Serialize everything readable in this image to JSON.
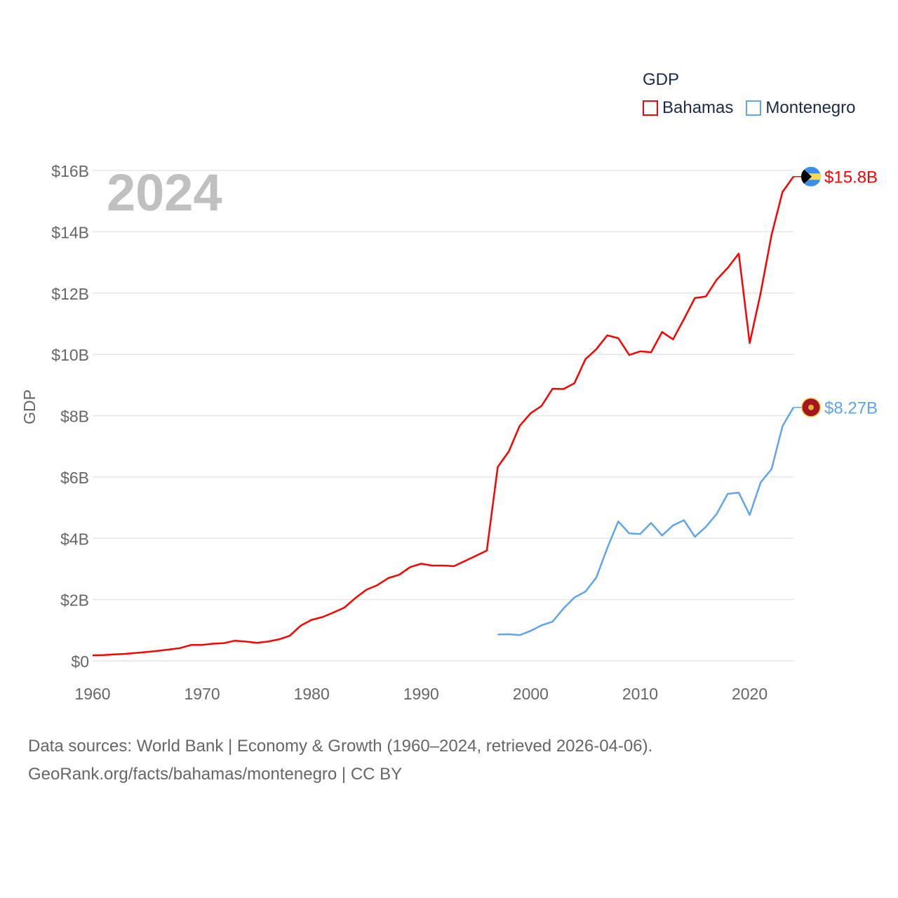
{
  "legend": {
    "title": "GDP",
    "items": [
      {
        "label": "Bahamas",
        "color": "#ff0000"
      },
      {
        "label": "Montenegro",
        "color": "#5ea5ee"
      }
    ]
  },
  "footer": {
    "line1": "Data sources: World Bank | Economy & Growth (1960–2024, retrieved 2026-04-06).",
    "line2": "GeoRank.org/facts/bahamas/montenegro | CC BY"
  },
  "chart_data": {
    "type": "line",
    "year_label": "2024",
    "ylabel": "GDP",
    "xlim": [
      1960,
      2024
    ],
    "ylim": [
      0,
      16
    ],
    "grid": true,
    "legend_position": "top-right",
    "xticks": [
      {
        "v": 1960,
        "label": "1960"
      },
      {
        "v": 1970,
        "label": "1970"
      },
      {
        "v": 1980,
        "label": "1980"
      },
      {
        "v": 1990,
        "label": "1990"
      },
      {
        "v": 2000,
        "label": "2000"
      },
      {
        "v": 2010,
        "label": "2010"
      },
      {
        "v": 2020,
        "label": "2020"
      }
    ],
    "yticks": [
      {
        "v": 0,
        "label": "$0"
      },
      {
        "v": 2,
        "label": "$2B"
      },
      {
        "v": 4,
        "label": "$4B"
      },
      {
        "v": 6,
        "label": "$6B"
      },
      {
        "v": 8,
        "label": "$8B"
      },
      {
        "v": 10,
        "label": "$10B"
      },
      {
        "v": 12,
        "label": "$12B"
      },
      {
        "v": 14,
        "label": "$14B"
      },
      {
        "v": 16,
        "label": "$16B"
      }
    ],
    "series": [
      {
        "name": "Bahamas",
        "color": "#ff0000",
        "end_label": "$15.8B",
        "start_year": 1960,
        "values": [
          0.18,
          0.19,
          0.21,
          0.23,
          0.26,
          0.29,
          0.33,
          0.37,
          0.42,
          0.52,
          0.52,
          0.56,
          0.58,
          0.66,
          0.63,
          0.59,
          0.63,
          0.7,
          0.82,
          1.15,
          1.34,
          1.43,
          1.58,
          1.74,
          2.05,
          2.32,
          2.47,
          2.7,
          2.81,
          3.06,
          3.17,
          3.11,
          3.11,
          3.09,
          3.26,
          3.43,
          3.6,
          6.33,
          6.83,
          7.67,
          8.08,
          8.32,
          8.88,
          8.87,
          9.06,
          9.84,
          10.17,
          10.62,
          10.53,
          9.98,
          10.1,
          10.07,
          10.73,
          10.49,
          11.15,
          11.84,
          11.89,
          12.44,
          12.82,
          13.29,
          10.37,
          12.0,
          13.9,
          15.3,
          15.8
        ]
      },
      {
        "name": "Montenegro",
        "color": "#5ea5ee",
        "end_label": "$8.27B",
        "start_year": 1997,
        "values": [
          0.86,
          0.87,
          0.84,
          0.98,
          1.16,
          1.28,
          1.71,
          2.07,
          2.26,
          2.72,
          3.68,
          4.55,
          4.16,
          4.14,
          4.5,
          4.09,
          4.42,
          4.59,
          4.05,
          4.37,
          4.8,
          5.45,
          5.49,
          4.76,
          5.82,
          6.26,
          7.66,
          8.27
        ]
      }
    ]
  }
}
